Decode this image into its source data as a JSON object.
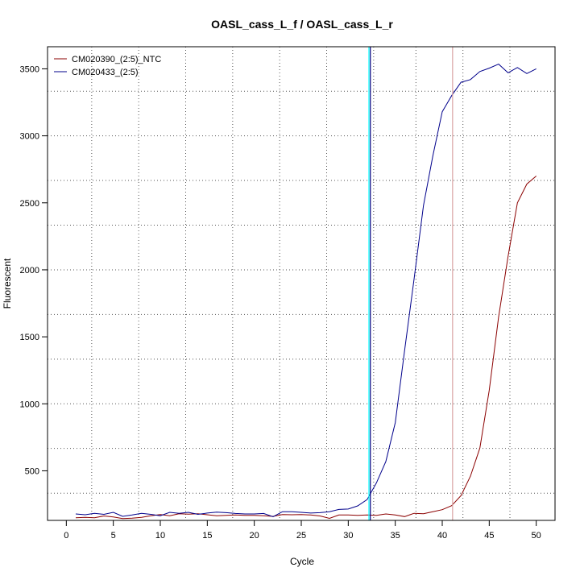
{
  "chart_data": {
    "type": "line",
    "title": "OASL_cass_L_f / OASL_cass_L_r",
    "xlabel": "Cycle",
    "ylabel": "Fluorescent",
    "xlim": [
      -2,
      52
    ],
    "ylim": [
      130,
      3665
    ],
    "x_ticks": [
      0,
      5,
      10,
      15,
      20,
      25,
      30,
      35,
      40,
      45,
      50
    ],
    "x_tick_labels": [
      "0",
      "5",
      "10",
      "15",
      "20",
      "25",
      "30",
      "35",
      "40",
      "45",
      "50"
    ],
    "y_ticks": [
      500,
      1000,
      1500,
      2000,
      2500,
      3000,
      3500
    ],
    "y_tick_labels": [
      "500",
      "1000",
      "1500",
      "2000",
      "2500",
      "3000",
      "3500"
    ],
    "grid": true,
    "grid_style": "dotted",
    "v_grid": [
      2.7,
      7.7,
      12.7,
      17.7,
      22.7,
      27.7,
      32.7,
      37.2,
      42.2,
      47.2
    ],
    "h_grid": [
      333,
      667,
      1000,
      1333,
      1667,
      2000,
      2333,
      2667,
      3000,
      3333
    ],
    "legend_position": "top-left",
    "series": [
      {
        "name": "CM020390_(2:5)_NTC",
        "color": "#8b0000",
        "x": [
          1,
          2,
          3,
          4,
          5,
          6,
          7,
          8,
          9,
          10,
          11,
          12,
          13,
          14,
          15,
          16,
          17,
          18,
          19,
          20,
          21,
          22,
          23,
          24,
          25,
          26,
          27,
          28,
          29,
          30,
          31,
          32,
          33,
          34,
          35,
          36,
          37,
          38,
          39,
          40,
          41,
          42,
          43,
          44,
          45,
          46,
          47,
          48,
          49,
          50
        ],
        "values": [
          150,
          153,
          150,
          163,
          155,
          144,
          147,
          152,
          165,
          173,
          165,
          180,
          176,
          180,
          172,
          165,
          167,
          170,
          168,
          168,
          165,
          160,
          173,
          172,
          173,
          170,
          163,
          145,
          170,
          170,
          167,
          170,
          168,
          178,
          170,
          158,
          183,
          180,
          195,
          210,
          240,
          315,
          460,
          670,
          1100,
          1650,
          2100,
          2500,
          2640,
          2700
        ]
      },
      {
        "name": "CM020433_(2:5)",
        "color": "#00008b",
        "x": [
          1,
          2,
          3,
          4,
          5,
          6,
          7,
          8,
          9,
          10,
          11,
          12,
          13,
          14,
          15,
          16,
          17,
          18,
          19,
          20,
          21,
          22,
          23,
          24,
          25,
          26,
          27,
          28,
          29,
          30,
          31,
          32,
          33,
          34,
          35,
          36,
          37,
          38,
          39,
          40,
          41,
          42,
          43,
          44,
          45,
          46,
          47,
          48,
          49,
          50
        ],
        "values": [
          178,
          172,
          183,
          175,
          190,
          160,
          170,
          183,
          175,
          165,
          190,
          183,
          190,
          175,
          185,
          192,
          188,
          182,
          178,
          178,
          182,
          157,
          195,
          195,
          190,
          185,
          188,
          195,
          212,
          215,
          238,
          285,
          410,
          570,
          860,
          1400,
          1930,
          2480,
          2850,
          3180,
          3300,
          3400,
          3420,
          3480,
          3505,
          3535,
          3470,
          3510,
          3465,
          3500
        ]
      }
    ],
    "vertical_markers": [
      {
        "x": 32.2,
        "color": "#00ffff"
      },
      {
        "x": 32.35,
        "color": "#000080"
      },
      {
        "x": 41.1,
        "color": "#d9a3a3"
      }
    ]
  }
}
